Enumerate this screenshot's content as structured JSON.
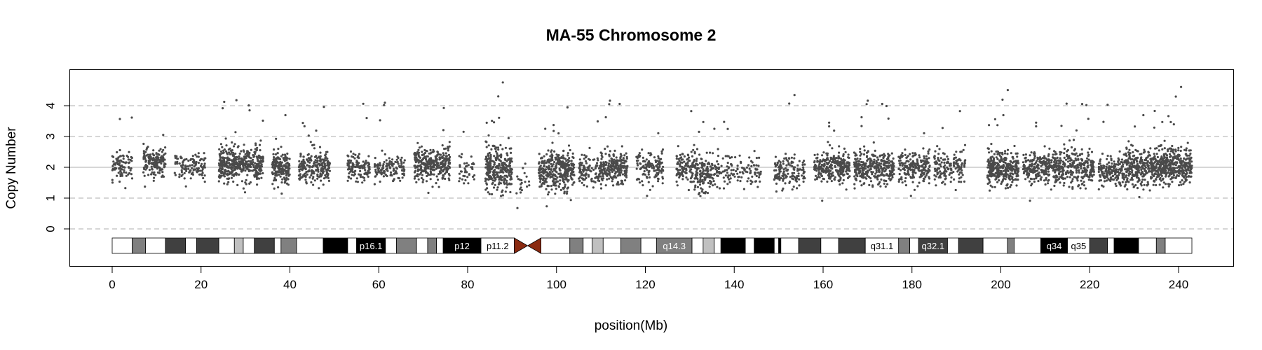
{
  "chart_data": {
    "type": "scatter",
    "title": "MA-55  Chromosome 2",
    "xlabel": "position(Mb)",
    "ylabel": "Copy Number",
    "xlim": [
      -10,
      252
    ],
    "ylim": [
      -1.2,
      5.2
    ],
    "x_ticks": [
      0,
      20,
      40,
      60,
      80,
      100,
      120,
      140,
      160,
      180,
      200,
      220,
      240
    ],
    "y_ticks": [
      0,
      1,
      2,
      3,
      4
    ],
    "reference_lines": {
      "solid": 2,
      "dashed": [
        0,
        1,
        3,
        4
      ]
    },
    "grid": false,
    "point_color": "#4a4a4a",
    "centromere_color": "#8b2a10",
    "chromosome_length_mb": 243,
    "centromere_mb": [
      90.5,
      96.5
    ],
    "ideogram": {
      "bands": [
        {
          "start": 0,
          "end": 4.5,
          "stain": "white"
        },
        {
          "start": 4.5,
          "end": 7.5,
          "stain": "gray"
        },
        {
          "start": 7.5,
          "end": 12,
          "stain": "white"
        },
        {
          "start": 12,
          "end": 16.5,
          "stain": "darkgray"
        },
        {
          "start": 16.5,
          "end": 19,
          "stain": "white"
        },
        {
          "start": 19,
          "end": 24,
          "stain": "darkgray"
        },
        {
          "start": 24,
          "end": 27.5,
          "stain": "white"
        },
        {
          "start": 27.5,
          "end": 29.5,
          "stain": "lightgray"
        },
        {
          "start": 29.5,
          "end": 32,
          "stain": "white"
        },
        {
          "start": 32,
          "end": 36.5,
          "stain": "darkgray"
        },
        {
          "start": 36.5,
          "end": 38,
          "stain": "white"
        },
        {
          "start": 38,
          "end": 41.5,
          "stain": "gray"
        },
        {
          "start": 41.5,
          "end": 47.5,
          "stain": "white"
        },
        {
          "start": 47.5,
          "end": 53,
          "stain": "black"
        },
        {
          "start": 53,
          "end": 55,
          "stain": "white"
        },
        {
          "start": 55,
          "end": 61.5,
          "stain": "black",
          "label": "p16.1"
        },
        {
          "start": 61.5,
          "end": 64,
          "stain": "white"
        },
        {
          "start": 64,
          "end": 68.5,
          "stain": "gray"
        },
        {
          "start": 68.5,
          "end": 71,
          "stain": "white"
        },
        {
          "start": 71,
          "end": 73,
          "stain": "gray"
        },
        {
          "start": 73,
          "end": 74.5,
          "stain": "white"
        },
        {
          "start": 74.5,
          "end": 83,
          "stain": "black",
          "label": "p12"
        },
        {
          "start": 83,
          "end": 90.5,
          "stain": "white",
          "label": "p11.2"
        },
        {
          "start": 96.5,
          "end": 103,
          "stain": "white"
        },
        {
          "start": 103,
          "end": 106,
          "stain": "gray"
        },
        {
          "start": 106,
          "end": 108,
          "stain": "white"
        },
        {
          "start": 108,
          "end": 110.5,
          "stain": "lightgray"
        },
        {
          "start": 110.5,
          "end": 114.5,
          "stain": "white"
        },
        {
          "start": 114.5,
          "end": 119,
          "stain": "gray"
        },
        {
          "start": 119,
          "end": 122.5,
          "stain": "white"
        },
        {
          "start": 122.5,
          "end": 130.5,
          "stain": "gray",
          "label": "q14.3"
        },
        {
          "start": 130.5,
          "end": 133,
          "stain": "white"
        },
        {
          "start": 133,
          "end": 135.5,
          "stain": "lightgray"
        },
        {
          "start": 135.5,
          "end": 137,
          "stain": "white"
        },
        {
          "start": 137,
          "end": 142.5,
          "stain": "black"
        },
        {
          "start": 142.5,
          "end": 144.5,
          "stain": "white"
        },
        {
          "start": 144.5,
          "end": 149,
          "stain": "black"
        },
        {
          "start": 149,
          "end": 150,
          "stain": "white"
        },
        {
          "start": 150,
          "end": 150.5,
          "stain": "black"
        },
        {
          "start": 150.5,
          "end": 154.5,
          "stain": "white"
        },
        {
          "start": 154.5,
          "end": 159.5,
          "stain": "darkgray"
        },
        {
          "start": 159.5,
          "end": 163.5,
          "stain": "white"
        },
        {
          "start": 163.5,
          "end": 169.5,
          "stain": "darkgray"
        },
        {
          "start": 169.5,
          "end": 177,
          "stain": "white",
          "label": "q31.1"
        },
        {
          "start": 177,
          "end": 179.5,
          "stain": "gray"
        },
        {
          "start": 179.5,
          "end": 181.5,
          "stain": "white"
        },
        {
          "start": 181.5,
          "end": 188,
          "stain": "darkgray",
          "label": "q32.1"
        },
        {
          "start": 188,
          "end": 190.5,
          "stain": "white"
        },
        {
          "start": 190.5,
          "end": 196,
          "stain": "darkgray"
        },
        {
          "start": 196,
          "end": 201.5,
          "stain": "white"
        },
        {
          "start": 201.5,
          "end": 203,
          "stain": "gray"
        },
        {
          "start": 203,
          "end": 209,
          "stain": "white"
        },
        {
          "start": 209,
          "end": 215,
          "stain": "black",
          "label": "q34"
        },
        {
          "start": 215,
          "end": 220,
          "stain": "white",
          "label": "q35"
        },
        {
          "start": 220,
          "end": 224,
          "stain": "darkgray"
        },
        {
          "start": 224,
          "end": 225.5,
          "stain": "white"
        },
        {
          "start": 225.5,
          "end": 231,
          "stain": "black"
        },
        {
          "start": 231,
          "end": 235,
          "stain": "white"
        },
        {
          "start": 235,
          "end": 237,
          "stain": "gray"
        },
        {
          "start": 237,
          "end": 243,
          "stain": "white"
        }
      ],
      "stain_colors": {
        "white": "#ffffff",
        "lightgray": "#c0c0c0",
        "gray": "#808080",
        "darkgray": "#404040",
        "black": "#000000"
      }
    },
    "point_clusters": [
      {
        "x": [
          0,
          4.5
        ],
        "mean": 2.0,
        "sd": 0.45,
        "n": 90
      },
      {
        "x": [
          7,
          12
        ],
        "mean": 2.2,
        "sd": 0.45,
        "n": 160
      },
      {
        "x": [
          14,
          21
        ],
        "mean": 2.0,
        "sd": 0.4,
        "n": 110
      },
      {
        "x": [
          24,
          34
        ],
        "mean": 2.1,
        "sd": 0.55,
        "n": 420
      },
      {
        "x": [
          36,
          40
        ],
        "mean": 2.0,
        "sd": 0.45,
        "n": 180
      },
      {
        "x": [
          42,
          49
        ],
        "mean": 2.0,
        "sd": 0.45,
        "n": 230
      },
      {
        "x": [
          53,
          58
        ],
        "mean": 2.0,
        "sd": 0.4,
        "n": 120
      },
      {
        "x": [
          59,
          66
        ],
        "mean": 2.0,
        "sd": 0.4,
        "n": 130
      },
      {
        "x": [
          68,
          76
        ],
        "mean": 2.1,
        "sd": 0.45,
        "n": 320
      },
      {
        "x": [
          78,
          82
        ],
        "mean": 1.9,
        "sd": 0.4,
        "n": 40
      },
      {
        "x": [
          84,
          90
        ],
        "mean": 2.0,
        "sd": 0.75,
        "n": 280
      },
      {
        "x": [
          91,
          94
        ],
        "mean": 1.5,
        "sd": 0.6,
        "n": 20
      },
      {
        "x": [
          96,
          104
        ],
        "mean": 1.9,
        "sd": 0.6,
        "n": 360
      },
      {
        "x": [
          105,
          110
        ],
        "mean": 1.9,
        "sd": 0.45,
        "n": 110
      },
      {
        "x": [
          110,
          116
        ],
        "mean": 2.0,
        "sd": 0.5,
        "n": 220
      },
      {
        "x": [
          118,
          124
        ],
        "mean": 2.0,
        "sd": 0.45,
        "n": 130
      },
      {
        "x": [
          127,
          131
        ],
        "mean": 2.0,
        "sd": 0.45,
        "n": 110
      },
      {
        "x": [
          131,
          135
        ],
        "mean": 1.8,
        "sd": 0.6,
        "n": 130
      },
      {
        "x": [
          135,
          146
        ],
        "mean": 1.9,
        "sd": 0.5,
        "n": 140
      },
      {
        "x": [
          149,
          156
        ],
        "mean": 1.9,
        "sd": 0.5,
        "n": 140
      },
      {
        "x": [
          158,
          166
        ],
        "mean": 2.0,
        "sd": 0.45,
        "n": 280
      },
      {
        "x": [
          167,
          176
        ],
        "mean": 2.0,
        "sd": 0.5,
        "n": 330
      },
      {
        "x": [
          177,
          184
        ],
        "mean": 2.0,
        "sd": 0.45,
        "n": 200
      },
      {
        "x": [
          185,
          192
        ],
        "mean": 2.0,
        "sd": 0.45,
        "n": 150
      },
      {
        "x": [
          197,
          204
        ],
        "mean": 2.0,
        "sd": 0.55,
        "n": 320
      },
      {
        "x": [
          205,
          212
        ],
        "mean": 2.0,
        "sd": 0.45,
        "n": 220
      },
      {
        "x": [
          212,
          221
        ],
        "mean": 2.0,
        "sd": 0.55,
        "n": 300
      },
      {
        "x": [
          222,
          228
        ],
        "mean": 1.9,
        "sd": 0.45,
        "n": 180
      },
      {
        "x": [
          228,
          236
        ],
        "mean": 2.0,
        "sd": 0.55,
        "n": 340
      },
      {
        "x": [
          236,
          243
        ],
        "mean": 2.1,
        "sd": 0.55,
        "n": 330
      }
    ]
  }
}
